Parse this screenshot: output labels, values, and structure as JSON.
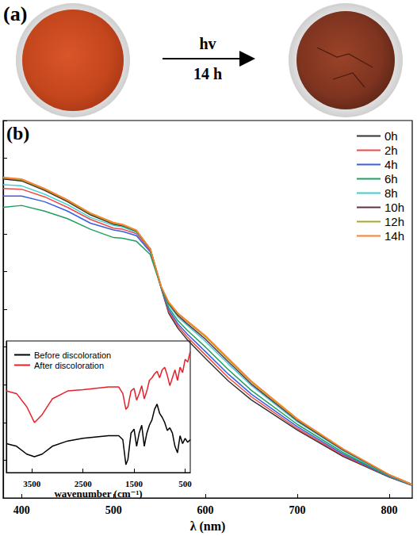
{
  "panel_a": {
    "label": "(a)",
    "arrow_label_top": "hv",
    "arrow_label_bottom": "14 h"
  },
  "chart_data": [
    {
      "type": "line",
      "title": "(b)",
      "xlabel": "λ (nm)",
      "x": [
        380,
        400,
        425,
        450,
        475,
        500,
        510,
        525,
        540,
        552,
        560,
        570,
        580,
        600,
        625,
        650,
        700,
        750,
        800,
        825
      ],
      "series": [
        {
          "name": "0h",
          "color": "#333333",
          "values": [
            0.845,
            0.84,
            0.815,
            0.785,
            0.75,
            0.725,
            0.72,
            0.705,
            0.66,
            0.555,
            0.49,
            0.45,
            0.42,
            0.37,
            0.31,
            0.26,
            0.18,
            0.11,
            0.055,
            0.033
          ]
        },
        {
          "name": "2h",
          "color": "#f04848",
          "values": [
            0.82,
            0.818,
            0.798,
            0.77,
            0.738,
            0.715,
            0.712,
            0.7,
            0.656,
            0.556,
            0.494,
            0.456,
            0.427,
            0.379,
            0.319,
            0.268,
            0.184,
            0.113,
            0.056,
            0.034
          ]
        },
        {
          "name": "4h",
          "color": "#3a5ee0",
          "values": [
            0.8,
            0.8,
            0.785,
            0.76,
            0.728,
            0.71,
            0.706,
            0.695,
            0.652,
            0.556,
            0.499,
            0.462,
            0.435,
            0.388,
            0.328,
            0.275,
            0.189,
            0.116,
            0.057,
            0.034
          ]
        },
        {
          "name": "6h",
          "color": "#1fa060",
          "values": [
            0.77,
            0.775,
            0.76,
            0.74,
            0.712,
            0.69,
            0.688,
            0.68,
            0.645,
            0.557,
            0.505,
            0.47,
            0.445,
            0.4,
            0.34,
            0.285,
            0.195,
            0.12,
            0.058,
            0.035
          ]
        },
        {
          "name": "8h",
          "color": "#3fcfd0",
          "values": [
            0.83,
            0.827,
            0.805,
            0.777,
            0.743,
            0.722,
            0.718,
            0.704,
            0.66,
            0.559,
            0.512,
            0.48,
            0.458,
            0.415,
            0.355,
            0.298,
            0.202,
            0.125,
            0.06,
            0.035
          ]
        },
        {
          "name": "10h",
          "color": "#6a2c48",
          "values": [
            0.847,
            0.842,
            0.817,
            0.787,
            0.752,
            0.727,
            0.722,
            0.707,
            0.66,
            0.559,
            0.515,
            0.484,
            0.462,
            0.421,
            0.361,
            0.302,
            0.205,
            0.127,
            0.061,
            0.036
          ]
        },
        {
          "name": "12h",
          "color": "#a8a828",
          "values": [
            0.848,
            0.843,
            0.818,
            0.788,
            0.753,
            0.728,
            0.723,
            0.708,
            0.66,
            0.56,
            0.518,
            0.488,
            0.467,
            0.427,
            0.367,
            0.307,
            0.208,
            0.129,
            0.062,
            0.036
          ]
        },
        {
          "name": "14h",
          "color": "#ff7f2a",
          "values": [
            0.85,
            0.845,
            0.82,
            0.79,
            0.755,
            0.73,
            0.725,
            0.71,
            0.66,
            0.56,
            0.52,
            0.49,
            0.47,
            0.43,
            0.37,
            0.31,
            0.21,
            0.13,
            0.062,
            0.036
          ]
        }
      ],
      "xlim": [
        380,
        825
      ],
      "xticks": [
        400,
        500,
        600,
        700,
        800
      ],
      "ylim": [
        0,
        1
      ],
      "yticks": [
        0,
        0.1,
        0.2,
        0.3,
        0.4,
        0.5,
        0.6,
        0.7,
        0.8,
        0.9,
        1
      ],
      "tick_labels": "x",
      "grid": false,
      "legend": "upper right",
      "marker": "none",
      "line_style": "solid"
    },
    {
      "type": "line",
      "xlabel": "wavenumber (cm⁻¹)",
      "x": [
        4000,
        3800,
        3600,
        3450,
        3300,
        3100,
        2800,
        2500,
        2000,
        1800,
        1720,
        1660,
        1620,
        1560,
        1500,
        1450,
        1400,
        1350,
        1300,
        1250,
        1200,
        1150,
        1100,
        1050,
        1000,
        950,
        900,
        850,
        800,
        750,
        700,
        650,
        600,
        550,
        500,
        450,
        400
      ],
      "series": [
        {
          "name": "Before discoloration",
          "color": "#000000",
          "values": [
            0.22,
            0.2,
            0.14,
            0.12,
            0.14,
            0.2,
            0.24,
            0.26,
            0.28,
            0.28,
            0.25,
            0.06,
            0.1,
            0.3,
            0.33,
            0.2,
            0.3,
            0.36,
            0.2,
            0.3,
            0.36,
            0.4,
            0.48,
            0.52,
            0.45,
            0.42,
            0.38,
            0.32,
            0.34,
            0.3,
            0.2,
            0.15,
            0.28,
            0.22,
            0.26,
            0.23,
            0.25
          ]
        },
        {
          "name": "After discoloration",
          "color": "#e8202a",
          "values": [
            0.62,
            0.6,
            0.5,
            0.38,
            0.44,
            0.56,
            0.62,
            0.63,
            0.65,
            0.65,
            0.6,
            0.48,
            0.5,
            0.62,
            0.64,
            0.55,
            0.6,
            0.66,
            0.56,
            0.62,
            0.7,
            0.72,
            0.75,
            0.77,
            0.72,
            0.78,
            0.8,
            0.74,
            0.66,
            0.72,
            0.78,
            0.7,
            0.8,
            0.76,
            0.86,
            0.84,
            0.92
          ]
        }
      ],
      "xlim": [
        4000,
        400
      ],
      "xticks": [
        3500,
        2500,
        1500,
        500
      ],
      "ylim": [
        0,
        1
      ],
      "tick_labels": "x",
      "grid": false,
      "legend": "upper left",
      "marker": "none",
      "line_style": "solid"
    }
  ]
}
